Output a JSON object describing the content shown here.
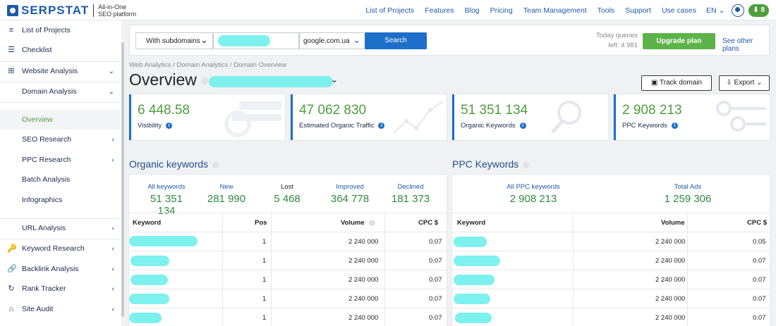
{
  "header": {
    "logo_text": "SERPSTAT",
    "logo_sub": "All-in-One SEO platform",
    "nav": [
      "List of Projects",
      "Features",
      "Blog",
      "Pricing",
      "Team Management",
      "Tools",
      "Support",
      "Use cases"
    ],
    "lang": "EN ⌄",
    "download_count": "⬇ 8"
  },
  "sidebar": {
    "items": [
      {
        "label": "List of Projects",
        "icon": "≡"
      },
      {
        "label": "Checklist",
        "icon": "☰"
      },
      {
        "label": "Website Analysis",
        "icon": "⊞",
        "chev": "⌄"
      },
      {
        "label": "Domain Analysis",
        "chev": "⌄"
      },
      {
        "label": "Overview"
      },
      {
        "label": "SEO Research",
        "chev": "‹"
      },
      {
        "label": "PPC Research",
        "chev": "‹"
      },
      {
        "label": "Batch Analysis"
      },
      {
        "label": "Infographics"
      },
      {
        "label": "URL Analysis",
        "chev": "‹"
      },
      {
        "label": "Keyword Research",
        "icon": "🔑",
        "chev": "‹"
      },
      {
        "label": "Backlink Analysis",
        "icon": "🔗",
        "chev": "‹"
      },
      {
        "label": "Rank Tracker",
        "icon": "↻",
        "chev": "‹"
      },
      {
        "label": "Site Audit",
        "icon": "⌂",
        "chev": "‹"
      }
    ]
  },
  "search": {
    "mode": "With subdomains",
    "database": "google.com.ua",
    "button": "Search",
    "quota_line1": "Today queries",
    "quota_line2": "left: 4 981",
    "upgrade": "Upgrade plan",
    "other_plans": "See other plans"
  },
  "breadcrumb": "Web Analytics / Domain Analytics / Domain Overview",
  "title": "Overview",
  "actions": {
    "track": "Track domain",
    "export": "Export ⌄"
  },
  "cards": [
    {
      "value": "6 448.58",
      "label": "Visibility"
    },
    {
      "value": "47 062 830",
      "label": "Estimated Organic Traffic"
    },
    {
      "value": "51 351 134",
      "label": "Organic Keywords"
    },
    {
      "value": "2 908 213",
      "label": "PPC Keywords"
    }
  ],
  "organic": {
    "title": "Organic keywords",
    "stats": [
      {
        "label": "All keywords",
        "value": "51 351 134"
      },
      {
        "label": "New",
        "value": "281 990"
      },
      {
        "label": "Lost",
        "value": "5 468"
      },
      {
        "label": "Improved",
        "value": "364 778"
      },
      {
        "label": "Declined",
        "value": "181 373"
      }
    ],
    "columns": [
      "Keyword",
      "Pos",
      "Volume",
      "CPC $"
    ],
    "rows": [
      {
        "pos": "1",
        "volume": "2 240 000",
        "cpc": "0.07"
      },
      {
        "pos": "1",
        "volume": "2 240 000",
        "cpc": "0.07"
      },
      {
        "pos": "1",
        "volume": "2 240 000",
        "cpc": "0.07"
      },
      {
        "pos": "1",
        "volume": "2 240 000",
        "cpc": "0.07"
      },
      {
        "pos": "1",
        "volume": "2 240 000",
        "cpc": "0.07"
      }
    ]
  },
  "ppc": {
    "title": "PPC Keywords",
    "stats": [
      {
        "label": "All PPC keywords",
        "value": "2 908 213"
      },
      {
        "label": "Total Ads",
        "value": "1 259 306"
      }
    ],
    "columns": [
      "Keyword",
      "Volume",
      "CPC $"
    ],
    "rows": [
      {
        "volume": "2 240 000",
        "cpc": "0.05"
      },
      {
        "volume": "2 240 000",
        "cpc": "0.07"
      },
      {
        "volume": "2 240 000",
        "cpc": "0.07"
      },
      {
        "volume": "2 240 000",
        "cpc": "0.07"
      },
      {
        "volume": "2 240 000",
        "cpc": "0.07"
      }
    ]
  },
  "colors": {
    "brand": "#1d5aa8",
    "accent_green": "#4e9e3d",
    "button_blue": "#1d6fc9"
  }
}
